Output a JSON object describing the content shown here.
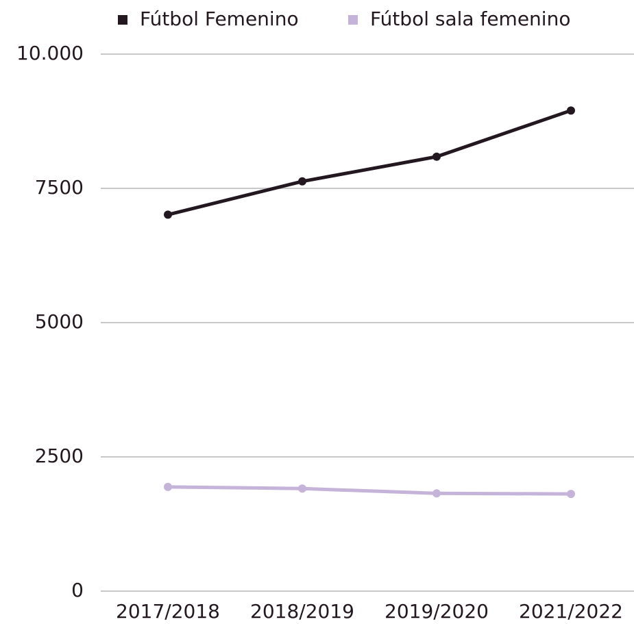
{
  "chart_data": {
    "type": "line",
    "categories": [
      "2017/2018",
      "2018/2019",
      "2019/2020",
      "2021/2022"
    ],
    "series": [
      {
        "name": "Fútbol Femenino",
        "color": "#231820",
        "values": [
          7010,
          7630,
          8090,
          8950
        ]
      },
      {
        "name": "Fútbol sala femenino",
        "color": "#c5b3d9",
        "values": [
          1940,
          1910,
          1820,
          1810
        ]
      }
    ],
    "ylim": [
      0,
      10000
    ],
    "yticks": [
      0,
      2500,
      5000,
      7500,
      {
        "value": 10000,
        "label": "10.000"
      }
    ],
    "grid": true,
    "legend": "top"
  }
}
